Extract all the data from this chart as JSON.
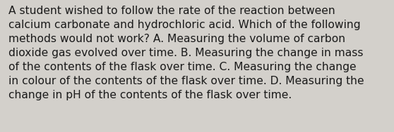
{
  "lines": [
    "A student wished to follow the rate of the reaction between",
    "calcium carbonate and hydrochloric acid. Which of the following",
    "methods would not work? A. Measuring the volume of carbon",
    "dioxide gas evolved over time. B. Measuring the change in mass",
    "of the contents of the flask over time. C. Measuring the change",
    "in colour of the contents of the flask over time. D. Measuring the",
    "change in pH of the contents of the flask over time."
  ],
  "background_color": "#d3d0cb",
  "text_color": "#1a1a1a",
  "font_size": 11.2,
  "fig_width": 5.58,
  "fig_height": 1.88,
  "dpi": 100
}
